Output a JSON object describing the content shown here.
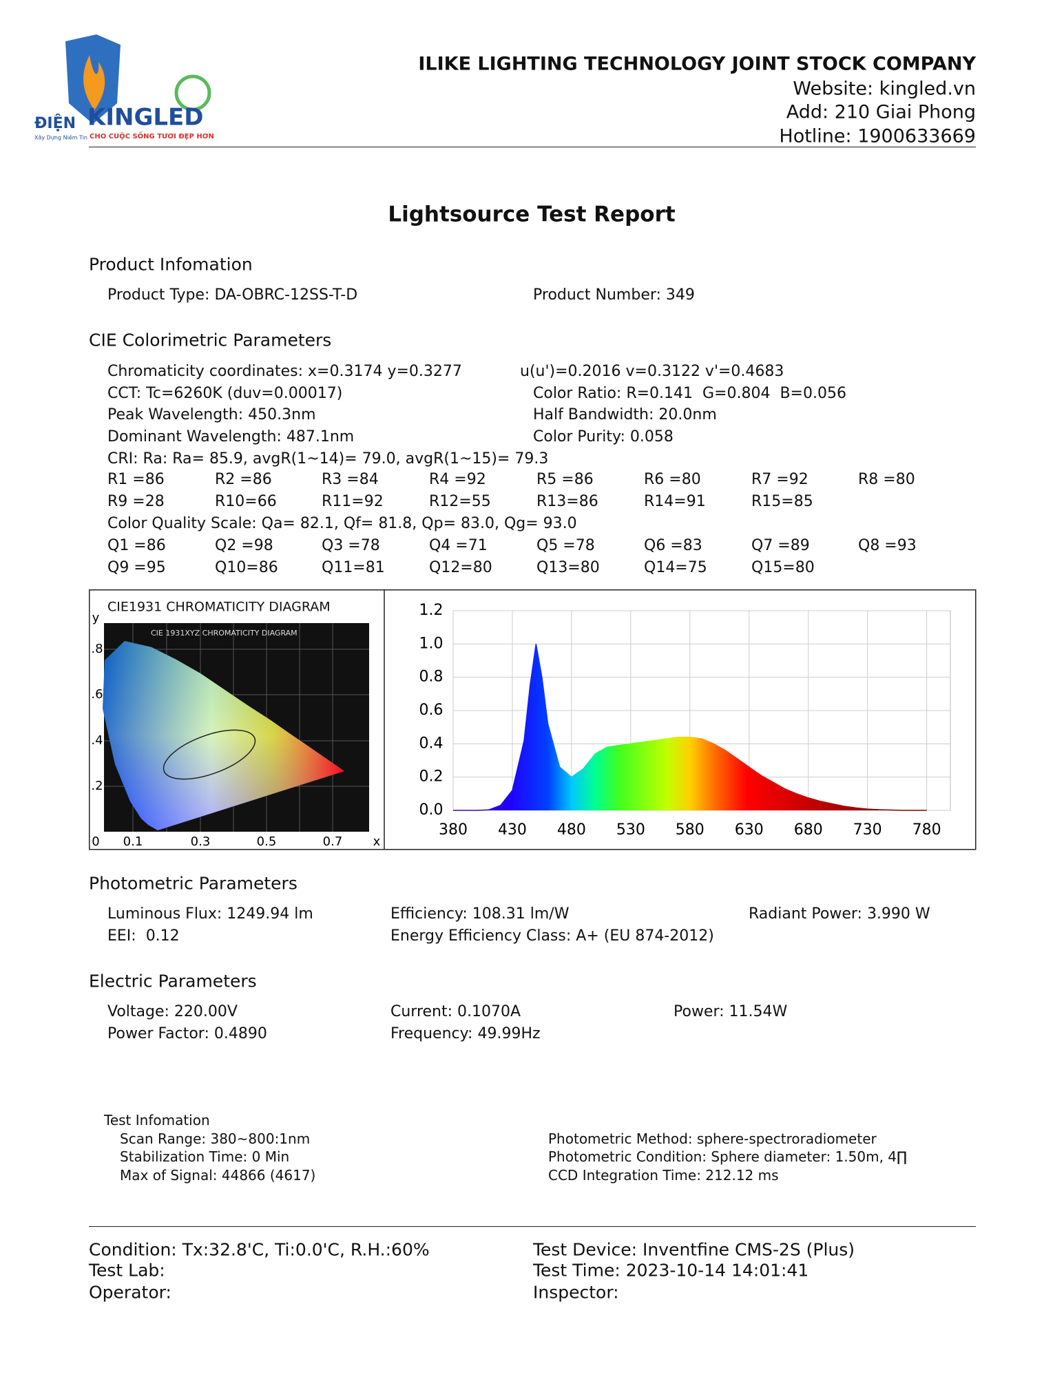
{
  "logo": {
    "prefix": "ĐIỆN",
    "brand": "KINGLED",
    "tagline": "CHO CUỘC SỐNG TƯƠI ĐẸP HƠN",
    "slogan": "Xây Dựng Niềm Tin"
  },
  "header": {
    "company": "ILIKE LIGHTING TECHNOLOGY JOINT STOCK COMPANY",
    "website": "Website: kingled.vn",
    "address": "Add: 210 Giai Phong",
    "hotline": "Hotline: 1900633669"
  },
  "title": "Lightsource Test Report",
  "product_info": {
    "heading": "Product Infomation",
    "type": "Product Type: DA-OBRC-12SS-T-D",
    "number": "Product Number: 349"
  },
  "cie_parameters": {
    "heading": "CIE Colorimetric Parameters",
    "chromaticity": "Chromaticity coordinates: x=0.3174 y=0.3277",
    "uv": "u(u')=0.2016 v=0.3122 v'=0.4683",
    "cct": "CCT: Tc=6260K (duv=0.00017)",
    "color_ratio": "Color Ratio: R=0.141  G=0.804  B=0.056",
    "peak": "Peak Wavelength: 450.3nm",
    "half_bandwidth": "Half Bandwidth: 20.0nm",
    "dominant": "Dominant Wavelength: 487.1nm",
    "purity": "Color Purity: 0.058",
    "cri": "CRI: Ra: Ra= 85.9, avgR(1~14)= 79.0, avgR(1~15)= 79.3",
    "r_values": [
      [
        "R1 =86",
        "R2 =86",
        "R3 =84",
        "R4 =92",
        "R5 =86",
        "R6 =80",
        "R7 =92",
        "R8 =80"
      ],
      [
        "R9 =28",
        "R10=66",
        "R11=92",
        "R12=55",
        "R13=86",
        "R14=91",
        "R15=85"
      ]
    ],
    "cqs": "Color Quality Scale: Qa= 82.1, Qf= 81.8, Qp= 83.0, Qg= 93.0",
    "q_values": [
      [
        "Q1 =86",
        "Q2 =98",
        "Q3 =78",
        "Q4 =71",
        "Q5 =78",
        "Q6 =83",
        "Q7 =89",
        "Q8 =93"
      ],
      [
        "Q9 =95",
        "Q10=86",
        "Q11=81",
        "Q12=80",
        "Q13=80",
        "Q14=75",
        "Q15=80"
      ]
    ]
  },
  "cie_diagram": {
    "title": "CIE1931 CHROMATICITY DIAGRAM",
    "inner_title": "CIE 1931XYZ CHROMATICITY DIAGRAM",
    "y_label": "y",
    "x_label": "x",
    "y_ticks": [
      ".8",
      ".6",
      ".4",
      ".2"
    ],
    "x_ticks": [
      "0",
      "0.1",
      "0.3",
      "0.5",
      "0.7"
    ]
  },
  "chart_data": {
    "type": "area",
    "x": [
      380,
      390,
      400,
      410,
      420,
      430,
      440,
      445,
      450,
      455,
      460,
      470,
      480,
      490,
      500,
      510,
      520,
      530,
      540,
      550,
      560,
      570,
      580,
      590,
      600,
      610,
      620,
      630,
      640,
      650,
      660,
      670,
      680,
      690,
      700,
      710,
      720,
      730,
      740,
      750,
      760,
      770,
      780
    ],
    "values": [
      0,
      0,
      0,
      0.003,
      0.03,
      0.12,
      0.42,
      0.75,
      1.0,
      0.8,
      0.52,
      0.26,
      0.2,
      0.25,
      0.34,
      0.38,
      0.39,
      0.4,
      0.41,
      0.42,
      0.43,
      0.44,
      0.44,
      0.43,
      0.4,
      0.36,
      0.31,
      0.26,
      0.21,
      0.17,
      0.13,
      0.1,
      0.075,
      0.055,
      0.04,
      0.025,
      0.015,
      0.008,
      0.004,
      0.002,
      0,
      0,
      0
    ],
    "xlim": [
      380,
      800
    ],
    "ylim": [
      0,
      1.2
    ],
    "xticks": [
      380,
      430,
      480,
      530,
      580,
      630,
      680,
      730,
      780
    ],
    "yticks": [
      {
        "value": 0,
        "label": "0.0"
      },
      0.2,
      0.4,
      0.6,
      0.8,
      {
        "value": 1,
        "label": "1.0"
      },
      1.2
    ],
    "grid": true
  },
  "photometric": {
    "heading": "Photometric Parameters",
    "flux": "Luminous Flux: 1249.94 lm",
    "efficiency": "Efficiency: 108.31 lm/W",
    "radiant_power": "Radiant Power: 3.990 W",
    "eei": "EEI:  0.12",
    "energy_class": "Energy Efficiency Class: A+ (EU 874-2012)"
  },
  "electric": {
    "heading": "Electric Parameters",
    "voltage": "Voltage: 220.00V",
    "current": "Current: 0.1070A",
    "power": "Power: 11.54W",
    "power_factor": "Power Factor: 0.4890",
    "frequency": "Frequency: 49.99Hz"
  },
  "test_info": {
    "heading": "Test Infomation",
    "scan_range": "Scan Range: 380~800:1nm",
    "stabilization": "Stabilization Time: 0 Min",
    "max_signal": "Max of Signal: 44866 (4617)",
    "method": "Photometric Method: sphere-spectroradiometer",
    "condition": "Photometric Condition: Sphere diameter: 1.50m, 4∏",
    "ccd": "CCD Integration Time: 212.12 ms"
  },
  "footer": {
    "condition": "Condition: Tx:32.8'C, Ti:0.0'C, R.H.:60%",
    "lab": "Test Lab:",
    "operator": "Operator:",
    "device": "Test Device: Inventfine CMS-2S (Plus)",
    "time": "Test Time: 2023-10-14 14:01:41",
    "inspector": "Inspector:"
  }
}
